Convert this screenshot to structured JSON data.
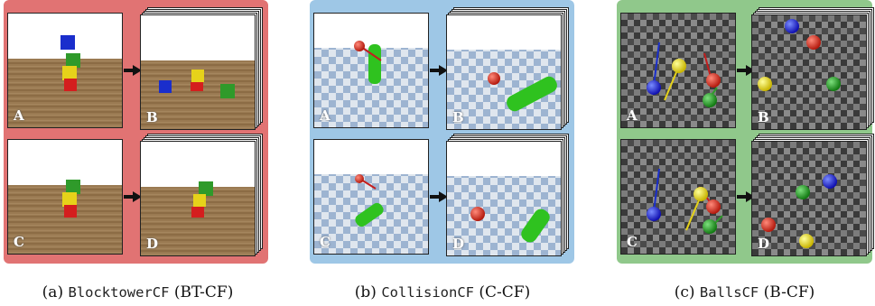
{
  "panels": [
    {
      "id": "blocktower",
      "bg": "#e17373",
      "caption": {
        "prefix": "(a) ",
        "name": "BlocktowerCF",
        "abbr": " (BT-CF)"
      },
      "frames": [
        "A",
        "B",
        "C",
        "D"
      ]
    },
    {
      "id": "collision",
      "bg": "#9ec7e6",
      "caption": {
        "prefix": "(b) ",
        "name": "CollisionCF",
        "abbr": " (C-CF)"
      },
      "frames": [
        "A",
        "B",
        "C",
        "D"
      ]
    },
    {
      "id": "balls",
      "bg": "#90c88b",
      "caption": {
        "prefix": "(c) ",
        "name": "BallsCF",
        "abbr": " (B-CF)"
      },
      "frames": [
        "A",
        "B",
        "C",
        "D"
      ]
    }
  ]
}
